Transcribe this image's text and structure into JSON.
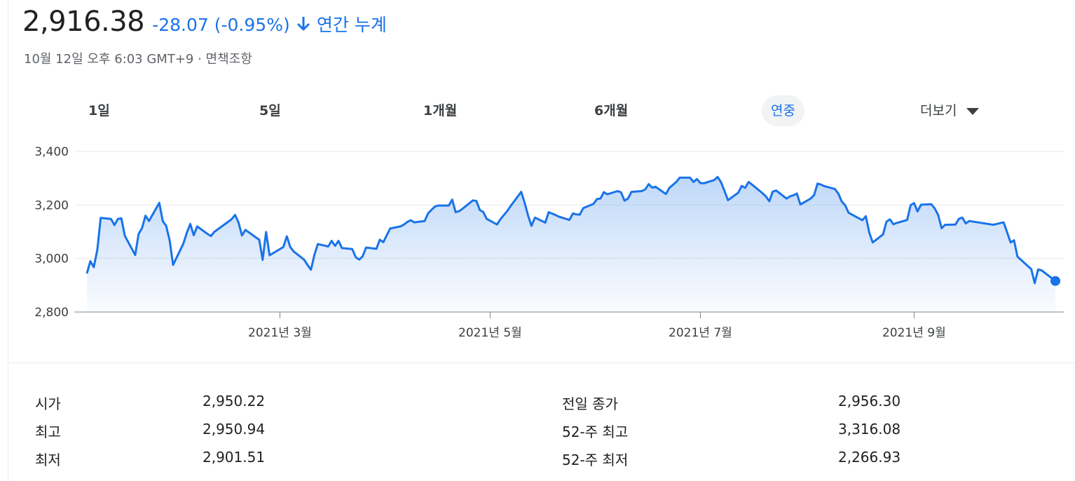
{
  "quote": {
    "price": "2,916.38",
    "change": "-28.07 (-0.95%)",
    "change_period": "연간 누계",
    "timestamp": "10월 12일 오후 6:03 GMT+9 · 면책조항",
    "change_color": "#1a73e8"
  },
  "range_tabs": [
    {
      "label": "1일"
    },
    {
      "label": "5일"
    },
    {
      "label": "1개월"
    },
    {
      "label": "6개월"
    },
    {
      "label": "연중"
    },
    {
      "label": "더보기"
    }
  ],
  "active_tab": "연중",
  "chart_data": {
    "type": "area",
    "y_ticks": [
      "3,400",
      "3,200",
      "3,000",
      "2,800"
    ],
    "x_ticks": [
      "2021년 3월",
      "2021년 5월",
      "2021년 7월",
      "2021년 9월"
    ],
    "ylim": [
      2800,
      3400
    ],
    "line_color": "#1a73e8",
    "grid": true,
    "x": [
      "2021-01-04",
      "2021-01-05",
      "2021-01-06",
      "2021-01-07",
      "2021-01-08",
      "2021-01-11",
      "2021-01-12",
      "2021-01-13",
      "2021-01-14",
      "2021-01-15",
      "2021-01-18",
      "2021-01-19",
      "2021-01-20",
      "2021-01-21",
      "2021-01-22",
      "2021-01-25",
      "2021-01-26",
      "2021-01-27",
      "2021-01-28",
      "2021-01-29",
      "2021-02-01",
      "2021-02-02",
      "2021-02-03",
      "2021-02-04",
      "2021-02-05",
      "2021-02-08",
      "2021-02-09",
      "2021-02-10",
      "2021-02-15",
      "2021-02-16",
      "2021-02-17",
      "2021-02-18",
      "2021-02-19",
      "2021-02-22",
      "2021-02-23",
      "2021-02-24",
      "2021-02-25",
      "2021-02-26",
      "2021-03-02",
      "2021-03-03",
      "2021-03-04",
      "2021-03-05",
      "2021-03-08",
      "2021-03-09",
      "2021-03-10",
      "2021-03-11",
      "2021-03-12",
      "2021-03-15",
      "2021-03-16",
      "2021-03-17",
      "2021-03-18",
      "2021-03-19",
      "2021-03-22",
      "2021-03-23",
      "2021-03-24",
      "2021-03-25",
      "2021-03-26",
      "2021-03-29",
      "2021-03-30",
      "2021-03-31",
      "2021-04-01",
      "2021-04-02",
      "2021-04-05",
      "2021-04-06",
      "2021-04-07",
      "2021-04-08",
      "2021-04-09",
      "2021-04-12",
      "2021-04-13",
      "2021-04-14",
      "2021-04-15",
      "2021-04-16",
      "2021-04-19",
      "2021-04-20",
      "2021-04-21",
      "2021-04-22",
      "2021-04-23",
      "2021-04-26",
      "2021-04-27",
      "2021-04-28",
      "2021-04-29",
      "2021-04-30",
      "2021-05-03",
      "2021-05-04",
      "2021-05-06",
      "2021-05-07",
      "2021-05-10",
      "2021-05-11",
      "2021-05-12",
      "2021-05-13",
      "2021-05-14",
      "2021-05-17",
      "2021-05-18",
      "2021-05-20",
      "2021-05-21",
      "2021-05-24",
      "2021-05-25",
      "2021-05-26",
      "2021-05-27",
      "2021-05-28",
      "2021-05-31",
      "2021-06-01",
      "2021-06-02",
      "2021-06-03",
      "2021-06-04",
      "2021-06-07",
      "2021-06-08",
      "2021-06-09",
      "2021-06-10",
      "2021-06-11",
      "2021-06-14",
      "2021-06-15",
      "2021-06-16",
      "2021-06-17",
      "2021-06-18",
      "2021-06-21",
      "2021-06-22",
      "2021-06-23",
      "2021-06-24",
      "2021-06-25",
      "2021-06-28",
      "2021-06-29",
      "2021-06-30",
      "2021-07-01",
      "2021-07-02",
      "2021-07-05",
      "2021-07-06",
      "2021-07-07",
      "2021-07-08",
      "2021-07-09",
      "2021-07-12",
      "2021-07-13",
      "2021-07-14",
      "2021-07-15",
      "2021-07-16",
      "2021-07-19",
      "2021-07-20",
      "2021-07-21",
      "2021-07-22",
      "2021-07-23",
      "2021-07-26",
      "2021-07-27",
      "2021-07-28",
      "2021-07-29",
      "2021-07-30",
      "2021-08-02",
      "2021-08-03",
      "2021-08-04",
      "2021-08-05",
      "2021-08-06",
      "2021-08-09",
      "2021-08-10",
      "2021-08-11",
      "2021-08-12",
      "2021-08-13",
      "2021-08-17",
      "2021-08-18",
      "2021-08-19",
      "2021-08-20",
      "2021-08-23",
      "2021-08-24",
      "2021-08-25",
      "2021-08-26",
      "2021-08-27",
      "2021-08-30",
      "2021-08-31",
      "2021-09-01",
      "2021-09-02",
      "2021-09-03",
      "2021-09-06",
      "2021-09-07",
      "2021-09-08",
      "2021-09-09",
      "2021-09-10",
      "2021-09-13",
      "2021-09-14",
      "2021-09-15",
      "2021-09-16",
      "2021-09-17",
      "2021-09-23",
      "2021-09-24",
      "2021-09-27",
      "2021-09-28",
      "2021-09-29",
      "2021-09-30",
      "2021-10-01",
      "2021-10-05",
      "2021-10-06",
      "2021-10-07",
      "2021-10-08",
      "2021-10-12"
    ],
    "values": [
      2944,
      2990,
      2968,
      3031,
      3152,
      3148,
      3125,
      3148,
      3150,
      3085,
      3013,
      3092,
      3114,
      3160,
      3140,
      3208,
      3140,
      3122,
      3069,
      2976,
      3056,
      3096,
      3129,
      3087,
      3120,
      3092,
      3084,
      3100,
      3147,
      3163,
      3134,
      3086,
      3107,
      3079,
      3070,
      2995,
      3099,
      3012,
      3043,
      3083,
      3043,
      3026,
      2996,
      2976,
      2958,
      3013,
      3054,
      3045,
      3066,
      3047,
      3066,
      3039,
      3035,
      3005,
      2996,
      3008,
      3041,
      3036,
      3070,
      3061,
      3087,
      3112,
      3120,
      3127,
      3137,
      3143,
      3135,
      3140,
      3169,
      3182,
      3194,
      3198,
      3198,
      3220,
      3173,
      3177,
      3186,
      3217,
      3215,
      3181,
      3174,
      3148,
      3127,
      3147,
      3178,
      3197,
      3249,
      3209,
      3161,
      3122,
      3153,
      3134,
      3173,
      3162,
      3156,
      3144,
      3168,
      3165,
      3164,
      3188,
      3204,
      3222,
      3224,
      3248,
      3240,
      3252,
      3247,
      3216,
      3224,
      3249,
      3252,
      3258,
      3278,
      3265,
      3268,
      3241,
      3264,
      3275,
      3286,
      3302,
      3302,
      3286,
      3297,
      3282,
      3281,
      3293,
      3305,
      3285,
      3252,
      3218,
      3246,
      3271,
      3264,
      3286,
      3276,
      3244,
      3232,
      3214,
      3250,
      3254,
      3224,
      3232,
      3236,
      3243,
      3202,
      3224,
      3237,
      3280,
      3276,
      3270,
      3260,
      3243,
      3213,
      3199,
      3171,
      3143,
      3158,
      3097,
      3060,
      3090,
      3138,
      3146,
      3128,
      3133,
      3144,
      3199,
      3207,
      3176,
      3201,
      3203,
      3187,
      3162,
      3113,
      3126,
      3127,
      3148,
      3153,
      3131,
      3140,
      3128,
      3126,
      3135,
      3098,
      3060,
      3068,
      3007,
      2960,
      2908,
      2959,
      2956,
      2916
    ]
  },
  "stats": [
    {
      "label": "시가",
      "value": "2,950.22"
    },
    {
      "label": "최고",
      "value": "2,950.94"
    },
    {
      "label": "최저",
      "value": "2,901.51"
    },
    {
      "label": "전일 종가",
      "value": "2,956.30"
    },
    {
      "label": "52-주 최고",
      "value": "3,316.08"
    },
    {
      "label": "52-주 최저",
      "value": "2,266.93"
    }
  ]
}
